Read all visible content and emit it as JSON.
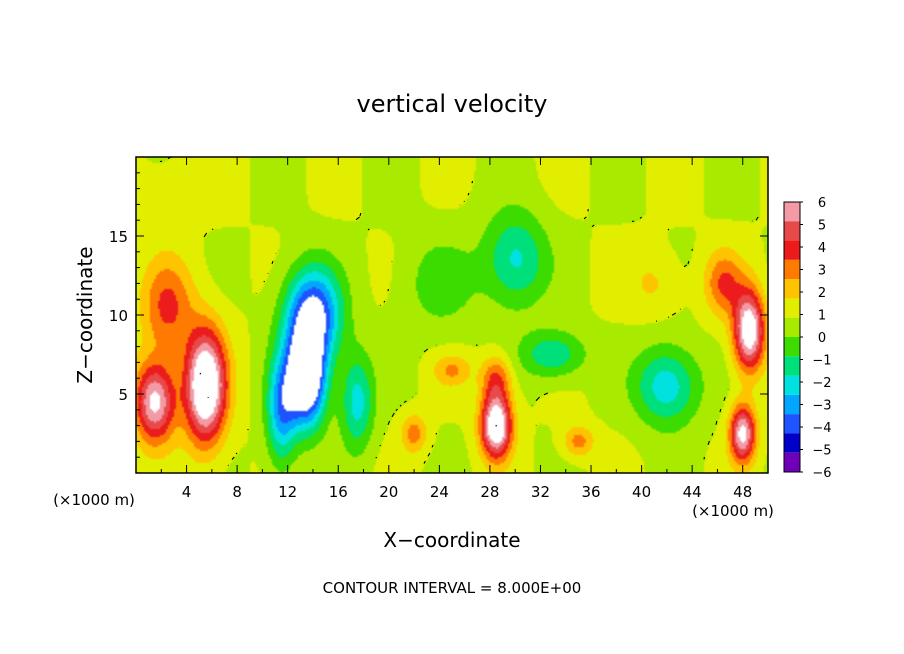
{
  "chart_data": {
    "type": "heatmap",
    "title": "vertical velocity",
    "xlabel": "X−coordinate",
    "ylabel": "Z−coordinate",
    "x_unit": "(×1000 m)",
    "xlim": [
      0,
      50
    ],
    "ylim": [
      0,
      20
    ],
    "x_ticks": [
      "4",
      "8",
      "12",
      "16",
      "20",
      "24",
      "28",
      "32",
      "36",
      "40",
      "44",
      "48"
    ],
    "y_ticks": [
      "5",
      "10",
      "15"
    ],
    "colorbar": {
      "ticks": [
        "6",
        "5",
        "4",
        "3",
        "2",
        "1",
        "0",
        "−1",
        "−2",
        "−3",
        "−4",
        "−5",
        "−6"
      ],
      "colors": [
        "#f49aa6",
        "#e84a4a",
        "#ec1c1c",
        "#ff7a00",
        "#ffc400",
        "#e2ee00",
        "#a8ea00",
        "#3cdc00",
        "#00e07a",
        "#00e2e0",
        "#00a6ff",
        "#1e54ff",
        "#0000c8",
        "#7000b8"
      ]
    },
    "features": [
      {
        "x": 5.5,
        "z": 5.5,
        "sx": 1.6,
        "sz": 3.5,
        "w": 8.5
      },
      {
        "x": 1.5,
        "z": 4.5,
        "sx": 1.6,
        "sz": 2.5,
        "w": 6.5
      },
      {
        "x": 2.5,
        "z": 10.5,
        "sx": 2.0,
        "sz": 3.0,
        "w": 3.2
      },
      {
        "x": 13.5,
        "z": 6.0,
        "sx": 1.5,
        "sz": 3.0,
        "w": -9
      },
      {
        "x": 14.0,
        "z": 10.0,
        "sx": 2.2,
        "sz": 3.0,
        "w": -6.5
      },
      {
        "x": 11.5,
        "z": 4.0,
        "sx": 1.2,
        "sz": 3.5,
        "w": -4.5
      },
      {
        "x": 17.5,
        "z": 4.5,
        "sx": 1.3,
        "sz": 3.0,
        "w": -3.5
      },
      {
        "x": 28.5,
        "z": 3.0,
        "sx": 1.2,
        "sz": 2.0,
        "w": 8
      },
      {
        "x": 28.5,
        "z": 6.0,
        "sx": 1.2,
        "sz": 1.5,
        "w": 3
      },
      {
        "x": 30.0,
        "z": 13.5,
        "sx": 2.5,
        "sz": 3.0,
        "w": -3.3
      },
      {
        "x": 33.0,
        "z": 7.5,
        "sx": 2.5,
        "sz": 1.5,
        "w": -3
      },
      {
        "x": 42.0,
        "z": 5.5,
        "sx": 2.5,
        "sz": 2.5,
        "w": -3.8
      },
      {
        "x": 48.5,
        "z": 9.0,
        "sx": 1.2,
        "sz": 2.5,
        "w": 7.5
      },
      {
        "x": 48.0,
        "z": 2.5,
        "sx": 1.0,
        "sz": 1.8,
        "w": 6.5
      },
      {
        "x": 46.5,
        "z": 12.0,
        "sx": 1.5,
        "sz": 2.0,
        "w": 3
      },
      {
        "x": 22.0,
        "z": 2.5,
        "sx": 1.0,
        "sz": 1.2,
        "w": 2.5
      },
      {
        "x": 35.0,
        "z": 2.0,
        "sx": 1.2,
        "sz": 1.0,
        "w": 2.5
      },
      {
        "x": 25.0,
        "z": 6.5,
        "sx": 1.5,
        "sz": 1.0,
        "w": 2
      },
      {
        "x": 24.0,
        "z": 12.0,
        "sx": 3.0,
        "sz": 3.0,
        "w": -1.5
      },
      {
        "x": 41.0,
        "z": 12.0,
        "sx": 2.0,
        "sz": 2.0,
        "w": 1.2
      },
      {
        "x": 3.0,
        "z": 18.0,
        "sx": 3.0,
        "sz": 2.0,
        "w": 0.6
      }
    ],
    "contour_interval_label": "CONTOUR INTERVAL = 8.000E+00"
  }
}
